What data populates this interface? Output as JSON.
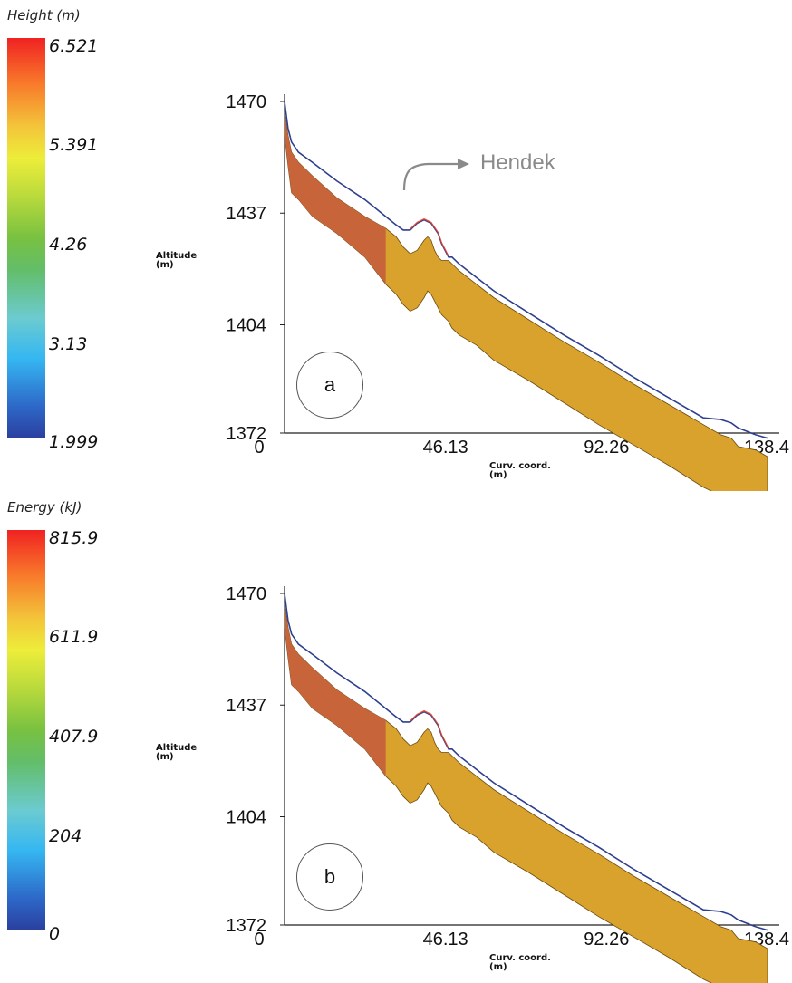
{
  "chart_data": [
    {
      "type": "area",
      "label": "a",
      "colorbar": {
        "title": "Height (m)",
        "ticks": [
          "6.521",
          "5.391",
          "4.26",
          "3.13",
          "1.999"
        ],
        "range": [
          1.999,
          6.521
        ]
      },
      "xlabel": "Curv. coord.\n(m)",
      "ylabel": "Altitude\n(m)",
      "xticks": [
        "0",
        "46.13",
        "92.26",
        "138.4"
      ],
      "yticks": [
        "1470",
        "1437",
        "1404",
        "1372"
      ],
      "xlim": [
        0,
        138.4
      ],
      "ylim": [
        1372,
        1470
      ],
      "annotation": "Hendek",
      "terrain": {
        "x": [
          0,
          1,
          2,
          4,
          8,
          15,
          23,
          29,
          32,
          34,
          36,
          38,
          40,
          41,
          42,
          43,
          44,
          45,
          47,
          48,
          50,
          55,
          60,
          70,
          80,
          90,
          100,
          110,
          120,
          125,
          128,
          130,
          135,
          138.4
        ],
        "top": [
          1467,
          1460,
          1455,
          1452,
          1448,
          1441.5,
          1436,
          1432.5,
          1430,
          1427,
          1425,
          1426,
          1429,
          1430,
          1429,
          1426,
          1424,
          1423,
          1423,
          1422,
          1420,
          1416,
          1412,
          1405.5,
          1399,
          1393,
          1386.5,
          1380.5,
          1374.5,
          1371.5,
          1370.5,
          1368,
          1367,
          1365
        ],
        "bottom": [
          1460,
          1451,
          1443,
          1441,
          1436,
          1431,
          1424,
          1416,
          1413,
          1410,
          1408,
          1409,
          1412,
          1414,
          1413,
          1411,
          1409,
          1407,
          1405,
          1403,
          1401,
          1398,
          1393.5,
          1387.5,
          1381,
          1374.5,
          1368.5,
          1362.5,
          1356,
          1353.5,
          1352,
          1351,
          1349,
          1348
        ]
      },
      "flow_surface": {
        "x": [
          0,
          1,
          2,
          4,
          8,
          15,
          23,
          29,
          32,
          34,
          36,
          37,
          38,
          40,
          42,
          44,
          45,
          47,
          48,
          50,
          55,
          60,
          70,
          80,
          90,
          100,
          110,
          120,
          125,
          128,
          130,
          135,
          138.4
        ],
        "y": [
          1470,
          1462,
          1458,
          1455,
          1452,
          1446.5,
          1441,
          1436,
          1433.5,
          1432,
          1432,
          1433,
          1434,
          1435,
          1434,
          1431,
          1428,
          1424,
          1424,
          1422,
          1418,
          1414,
          1407.5,
          1401,
          1395,
          1388.5,
          1382.5,
          1376.5,
          1376,
          1375,
          1373.5,
          1371.5,
          1370.5
        ]
      }
    },
    {
      "type": "area",
      "label": "b",
      "colorbar": {
        "title": "Energy (kJ)",
        "ticks": [
          "815.9",
          "611.9",
          "407.9",
          "204",
          "0"
        ],
        "range": [
          0,
          815.9
        ]
      },
      "xlabel": "Curv. coord.\n(m)",
      "ylabel": "Altitude\n(m)",
      "xticks": [
        "0",
        "46.13",
        "92.26",
        "138.4"
      ],
      "yticks": [
        "1470",
        "1437",
        "1404",
        "1372"
      ],
      "xlim": [
        0,
        138.4
      ],
      "ylim": [
        1372,
        1470
      ],
      "terrain": {
        "x": [
          0,
          1,
          2,
          4,
          8,
          15,
          23,
          29,
          32,
          34,
          36,
          38,
          40,
          41,
          42,
          43,
          44,
          45,
          47,
          48,
          50,
          55,
          60,
          70,
          80,
          90,
          100,
          110,
          120,
          125,
          128,
          130,
          135,
          138.4
        ],
        "top": [
          1467,
          1460,
          1455,
          1452,
          1448,
          1441.5,
          1436,
          1432.5,
          1430,
          1427,
          1425,
          1426,
          1429,
          1430,
          1429,
          1426,
          1424,
          1423,
          1423,
          1422,
          1420,
          1416,
          1412,
          1405.5,
          1399,
          1393,
          1386.5,
          1380.5,
          1374.5,
          1371.5,
          1370.5,
          1368,
          1367,
          1365
        ],
        "bottom": [
          1460,
          1451,
          1443,
          1441,
          1436,
          1431,
          1424,
          1416,
          1413,
          1410,
          1408,
          1409,
          1412,
          1414,
          1413,
          1411,
          1409,
          1407,
          1405,
          1403,
          1401,
          1398,
          1393.5,
          1387.5,
          1381,
          1374.5,
          1368.5,
          1362.5,
          1356,
          1353.5,
          1352,
          1351,
          1349,
          1348
        ]
      },
      "flow_surface": {
        "x": [
          0,
          1,
          2,
          4,
          8,
          15,
          23,
          29,
          32,
          34,
          36,
          37,
          38,
          40,
          42,
          44,
          45,
          47,
          48,
          50,
          55,
          60,
          70,
          80,
          90,
          100,
          110,
          120,
          125,
          128,
          130,
          135,
          138.4
        ],
        "y": [
          1470,
          1462,
          1458,
          1455,
          1452,
          1446.5,
          1441,
          1436,
          1433.5,
          1432,
          1432,
          1433,
          1434,
          1435,
          1434,
          1431,
          1428,
          1424,
          1424,
          1422,
          1418,
          1414,
          1407.5,
          1401,
          1395,
          1388.5,
          1382.5,
          1376.5,
          1376,
          1375,
          1373.5,
          1371.5,
          1370.5
        ]
      }
    }
  ],
  "colors": {
    "terrain_dark": "#c8643a",
    "terrain_main": "#d8a22c",
    "flow_line": "#2d3f8f",
    "annotation": "#8a8a8a"
  }
}
